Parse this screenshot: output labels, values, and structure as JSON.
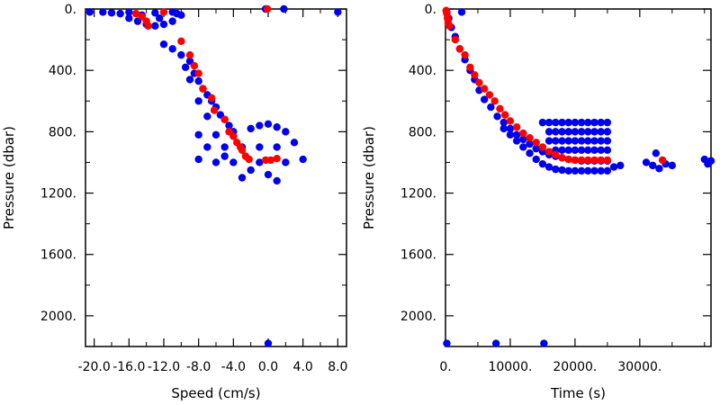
{
  "chart_data": [
    {
      "type": "scatter",
      "xlabel": "Speed (cm/s)",
      "ylabel": "Pressure (dbar)",
      "xlim": [
        -21,
        9
      ],
      "ylim": [
        0,
        2200
      ],
      "y_inverted": true,
      "x_ticks": [
        -20.0,
        -16.0,
        -12.0,
        -8.0,
        -4.0,
        0.0,
        4.0,
        8.0
      ],
      "x_tick_labels": [
        "-20.0",
        "-16.0",
        "-12.0",
        "-8.0",
        "-4.0",
        "0.0",
        "4.0",
        "8.0"
      ],
      "y_ticks": [
        0,
        400,
        800,
        1200,
        1600,
        2000
      ],
      "y_tick_labels": [
        "0.",
        "400.",
        "800.",
        "1200.",
        "1600.",
        "2000."
      ],
      "grid": false,
      "series": [
        {
          "color": "#0000ee",
          "points": [
            [
              -20.5,
              20
            ],
            [
              -19,
              20
            ],
            [
              -18,
              25
            ],
            [
              -17,
              30
            ],
            [
              -16,
              60
            ],
            [
              -15,
              80
            ],
            [
              -14,
              100
            ],
            [
              -13,
              110
            ],
            [
              -12,
              100
            ],
            [
              -11,
              80
            ],
            [
              -10,
              40
            ],
            [
              -16,
              20
            ],
            [
              -13,
              25
            ],
            [
              -11,
              20
            ],
            [
              -12.5,
              60
            ],
            [
              -14.5,
              40
            ],
            [
              -10.5,
              30
            ],
            [
              -0.3,
              0
            ],
            [
              1.8,
              0
            ],
            [
              8.0,
              20
            ],
            [
              -12,
              230
            ],
            [
              -11,
              260
            ],
            [
              -10,
              300
            ],
            [
              -9,
              340
            ],
            [
              -9.5,
              380
            ],
            [
              -8.5,
              420
            ],
            [
              -8,
              470
            ],
            [
              -7.5,
              520
            ],
            [
              -9,
              460
            ],
            [
              -7,
              560
            ],
            [
              -6.5,
              600
            ],
            [
              -6,
              640
            ],
            [
              -8,
              600
            ],
            [
              -7,
              700
            ],
            [
              -5.5,
              690
            ],
            [
              -5,
              720
            ],
            [
              -4.5,
              760
            ],
            [
              -8,
              820
            ],
            [
              -6,
              820
            ],
            [
              -4,
              800
            ],
            [
              -2,
              780
            ],
            [
              -1,
              760
            ],
            [
              0,
              750
            ],
            [
              1,
              770
            ],
            [
              2,
              800
            ],
            [
              3,
              870
            ],
            [
              4,
              980
            ],
            [
              -7,
              900
            ],
            [
              -5,
              900
            ],
            [
              -3,
              900
            ],
            [
              -1,
              900
            ],
            [
              1,
              900
            ],
            [
              -6,
              1000
            ],
            [
              -4,
              1000
            ],
            [
              -2,
              1050
            ],
            [
              0,
              1080
            ],
            [
              1,
              1120
            ],
            [
              -8,
              980
            ],
            [
              -3,
              1100
            ],
            [
              -1,
              1000
            ],
            [
              2,
              1000
            ],
            [
              -5,
              960
            ],
            [
              0,
              2180
            ]
          ]
        },
        {
          "color": "#ff0000",
          "points": [
            [
              -15.2,
              30
            ],
            [
              -14.5,
              50
            ],
            [
              -14,
              80
            ],
            [
              -13.8,
              110
            ],
            [
              -12,
              20
            ],
            [
              -0.1,
              0
            ],
            [
              -10,
              210
            ],
            [
              -9,
              300
            ],
            [
              -8.5,
              370
            ],
            [
              -8,
              420
            ],
            [
              -7.5,
              520
            ],
            [
              -6.5,
              580
            ],
            [
              -6.2,
              660
            ],
            [
              -5,
              720
            ],
            [
              -4.5,
              800
            ],
            [
              -4,
              830
            ],
            [
              -3.6,
              870
            ],
            [
              -3.2,
              900
            ],
            [
              -3,
              920
            ],
            [
              -2.6,
              960
            ],
            [
              -2.2,
              980
            ],
            [
              -0.3,
              985
            ],
            [
              0.3,
              985
            ],
            [
              1.0,
              975
            ]
          ]
        }
      ]
    },
    {
      "type": "scatter",
      "xlabel": "Time (s)",
      "ylabel": "Pressure (dbar)",
      "xlim": [
        0,
        41000
      ],
      "ylim": [
        0,
        2200
      ],
      "y_inverted": true,
      "x_ticks": [
        0,
        10000,
        20000,
        30000
      ],
      "x_tick_labels": [
        "0.",
        "10000.",
        "20000.",
        "30000."
      ],
      "y_ticks": [
        0,
        400,
        800,
        1200,
        1600,
        2000
      ],
      "y_tick_labels": [
        "0.",
        "400.",
        "800.",
        "1200.",
        "1600.",
        "2000."
      ],
      "grid": false,
      "series": [
        {
          "color": "#0000ee",
          "points": [
            [
              200,
              20
            ],
            [
              500,
              60
            ],
            [
              900,
              120
            ],
            [
              2500,
              20
            ],
            [
              1500,
              180
            ],
            [
              2200,
              260
            ],
            [
              3000,
              330
            ],
            [
              3800,
              400
            ],
            [
              4500,
              460
            ],
            [
              5200,
              530
            ],
            [
              6000,
              590
            ],
            [
              7000,
              640
            ],
            [
              8000,
              700
            ],
            [
              9000,
              740
            ],
            [
              10000,
              780
            ],
            [
              11000,
              820
            ],
            [
              12000,
              850
            ],
            [
              13000,
              880
            ],
            [
              14000,
              910
            ],
            [
              15000,
              930
            ],
            [
              16000,
              950
            ],
            [
              17000,
              960
            ],
            [
              18000,
              970
            ],
            [
              19000,
              980
            ],
            [
              20000,
              985
            ],
            [
              21000,
              990
            ],
            [
              22000,
              990
            ],
            [
              23000,
              990
            ],
            [
              24000,
              990
            ],
            [
              25000,
              990
            ],
            [
              9000,
              780
            ],
            [
              10000,
              820
            ],
            [
              11000,
              860
            ],
            [
              12000,
              900
            ],
            [
              13000,
              940
            ],
            [
              14000,
              980
            ],
            [
              15000,
              1010
            ],
            [
              16000,
              1030
            ],
            [
              17000,
              1045
            ],
            [
              18000,
              1050
            ],
            [
              19000,
              1055
            ],
            [
              20000,
              1055
            ],
            [
              21000,
              1055
            ],
            [
              22000,
              1055
            ],
            [
              23000,
              1055
            ],
            [
              24000,
              1055
            ],
            [
              25000,
              1055
            ],
            [
              15000,
              740
            ],
            [
              16000,
              740
            ],
            [
              17000,
              740
            ],
            [
              18000,
              740
            ],
            [
              19000,
              740
            ],
            [
              20000,
              740
            ],
            [
              21000,
              740
            ],
            [
              22000,
              740
            ],
            [
              23000,
              740
            ],
            [
              24000,
              740
            ],
            [
              25000,
              740
            ],
            [
              16000,
              800
            ],
            [
              17000,
              800
            ],
            [
              18000,
              800
            ],
            [
              19000,
              800
            ],
            [
              20000,
              800
            ],
            [
              21000,
              800
            ],
            [
              22000,
              800
            ],
            [
              23000,
              800
            ],
            [
              24000,
              800
            ],
            [
              25000,
              800
            ],
            [
              16000,
              860
            ],
            [
              17000,
              860
            ],
            [
              18000,
              860
            ],
            [
              19000,
              860
            ],
            [
              20000,
              860
            ],
            [
              21000,
              860
            ],
            [
              22000,
              860
            ],
            [
              23000,
              860
            ],
            [
              24000,
              860
            ],
            [
              25000,
              860
            ],
            [
              17000,
              920
            ],
            [
              18000,
              920
            ],
            [
              19000,
              920
            ],
            [
              20000,
              920
            ],
            [
              21000,
              920
            ],
            [
              22000,
              920
            ],
            [
              23000,
              920
            ],
            [
              24000,
              920
            ],
            [
              25000,
              920
            ],
            [
              26000,
              1030
            ],
            [
              27000,
              1020
            ],
            [
              31000,
              1000
            ],
            [
              32000,
              1020
            ],
            [
              32500,
              940
            ],
            [
              33000,
              1040
            ],
            [
              34000,
              1010
            ],
            [
              35000,
              1020
            ],
            [
              40000,
              980
            ],
            [
              40500,
              1010
            ],
            [
              41000,
              990
            ],
            [
              200,
              2180
            ],
            [
              7800,
              2180
            ],
            [
              15200,
              2180
            ]
          ]
        },
        {
          "color": "#ff0000",
          "points": [
            [
              100,
              10
            ],
            [
              200,
              30
            ],
            [
              300,
              60
            ],
            [
              400,
              90
            ],
            [
              600,
              110
            ],
            [
              1500,
              200
            ],
            [
              2200,
              260
            ],
            [
              3000,
              300
            ],
            [
              3800,
              380
            ],
            [
              4500,
              430
            ],
            [
              5200,
              480
            ],
            [
              6000,
              520
            ],
            [
              6800,
              560
            ],
            [
              7600,
              600
            ],
            [
              8400,
              650
            ],
            [
              9200,
              690
            ],
            [
              10000,
              730
            ],
            [
              11000,
              770
            ],
            [
              12000,
              810
            ],
            [
              13000,
              840
            ],
            [
              14000,
              870
            ],
            [
              15000,
              900
            ],
            [
              16000,
              930
            ],
            [
              17000,
              950
            ],
            [
              18000,
              970
            ],
            [
              19000,
              980
            ],
            [
              20000,
              985
            ],
            [
              21000,
              985
            ],
            [
              22000,
              985
            ],
            [
              23000,
              985
            ],
            [
              24000,
              985
            ],
            [
              25000,
              985
            ],
            [
              33500,
              985
            ]
          ]
        }
      ]
    }
  ]
}
